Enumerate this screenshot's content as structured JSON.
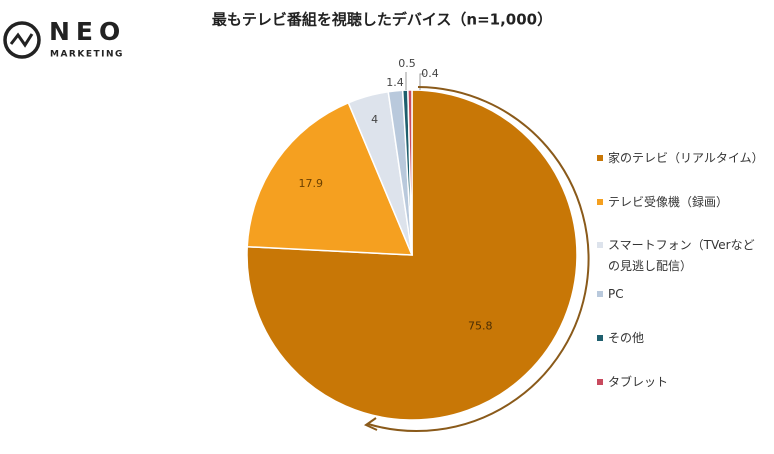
{
  "logo": {
    "name": "NEO",
    "sub": "MARKETING"
  },
  "chart_data": {
    "type": "pie",
    "title": "最もテレビ番組を視聴したデバイス（n=1,000）",
    "categories": [
      "家のテレビ（リアルタイム）",
      "テレビ受像機（録画）",
      "スマートフォン（TVerなどの見逃し配信）",
      "PC",
      "その他",
      "タブレット"
    ],
    "values": [
      75.8,
      17.9,
      4.0,
      1.4,
      0.5,
      0.4
    ],
    "colors": [
      "#c87706",
      "#f5a020",
      "#dde3ec",
      "#b9c9dc",
      "#1f5f6e",
      "#c84a5e"
    ],
    "legend": "right"
  }
}
